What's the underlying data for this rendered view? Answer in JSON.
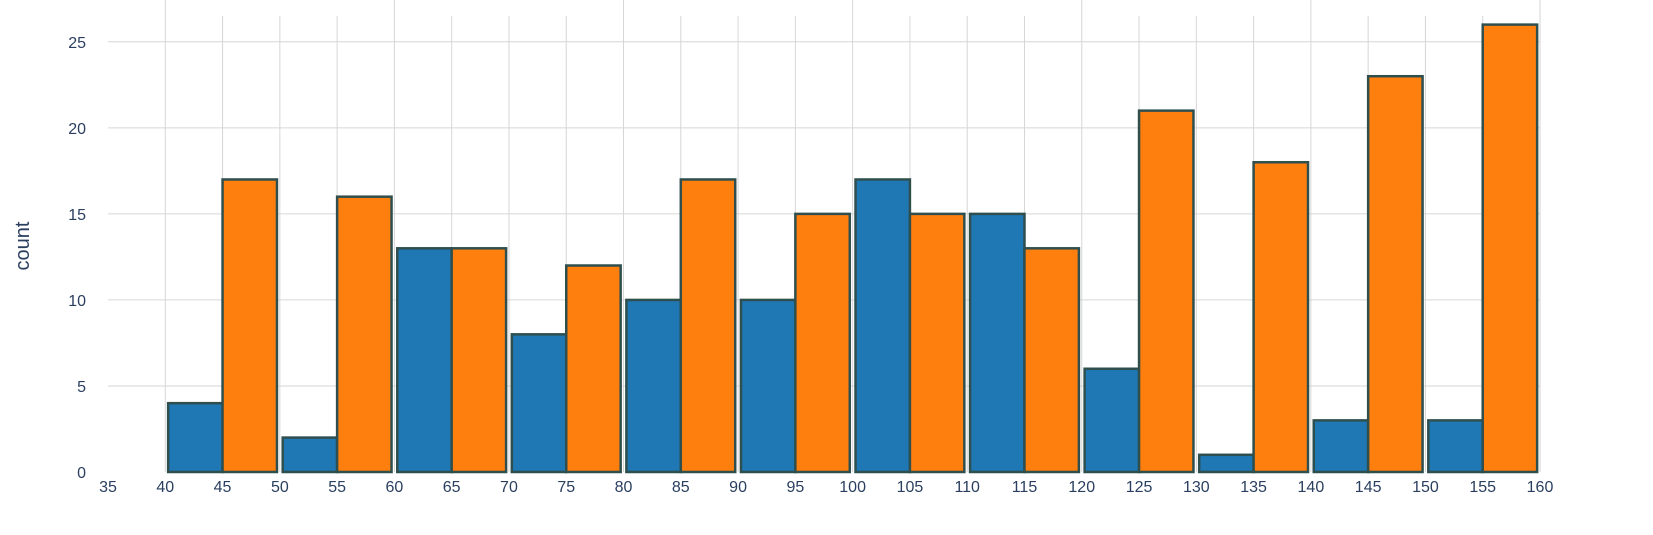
{
  "chart_data": {
    "type": "bar",
    "title": "",
    "xlabel": "",
    "ylabel": "count",
    "bin_edges": [
      40,
      50,
      60,
      70,
      80,
      90,
      100,
      110,
      120,
      130,
      140,
      150,
      160
    ],
    "series": [
      {
        "values": [
          4,
          2,
          13,
          8,
          10,
          10,
          17,
          15,
          6,
          1,
          3,
          3
        ]
      },
      {
        "values": [
          17,
          16,
          13,
          12,
          17,
          15,
          15,
          13,
          21,
          18,
          23,
          26
        ]
      }
    ],
    "xlim": [
      35,
      160
    ],
    "ylim": [
      0,
      26.5
    ],
    "x_ticks": [
      "35",
      "40",
      "45",
      "50",
      "55",
      "60",
      "65",
      "70",
      "75",
      "80",
      "85",
      "90",
      "95",
      "100",
      "105",
      "110",
      "115",
      "120",
      "125",
      "130",
      "135",
      "140",
      "145",
      "150",
      "155",
      "160"
    ],
    "y_ticks": [
      "0",
      "5",
      "10",
      "15",
      "20",
      "25"
    ],
    "grid": true,
    "colors": {
      "series": [
        "#1f77b4",
        "#ff7f0e"
      ],
      "bar_outline": "#2f4f4f",
      "grid": "#d6d6d6",
      "text": "#2a3f5f"
    }
  }
}
